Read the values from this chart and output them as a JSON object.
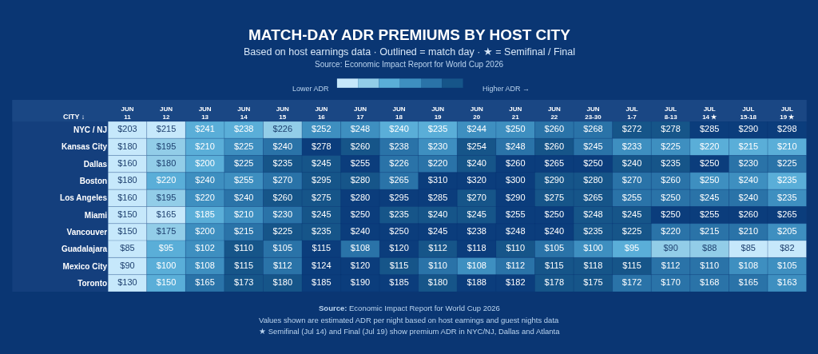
{
  "chart_data": {
    "type": "heatmap",
    "title": "MATCH-DAY ADR PREMIUMS BY HOST CITY",
    "subtitle": "Based on host earnings data · Outlined = match day · ★ = Semifinal / Final",
    "ylabel": "CITY ↓",
    "annotations": [
      "Source: Economic Impact Report for World Cup 2026",
      "Lower ADR",
      "Higher ADR →",
      "Source: Economic Impact Report for World Cup 2026",
      "Values shown are estimated ADR per night based on host earnings and guest nights data",
      "★ Semifinal (Jul 14) and Final (Jul 19) show premium ADR in NYC/NJ, Dallas and Atlanta"
    ],
    "categories": [
      "JUN 11",
      "JUN 12",
      "JUN 13",
      "JUN 14",
      "JUN 15",
      "JUN 16",
      "JUN 17",
      "JUN 18",
      "JUN 19",
      "JUN 20",
      "JUN 21",
      "JUN 22",
      "JUN 23-30",
      "JUL 1-7",
      "JUL 8-13",
      "JUL 14 ★",
      "JUL 15-18",
      "JUL 19 ★"
    ],
    "y_categories": [
      "NYC / NJ",
      "Kansas City",
      "Dallas",
      "Boston",
      "Los Angeles",
      "Miami",
      "Vancouver",
      "Guadalajara",
      "Mexico City",
      "Toronto"
    ],
    "cells": [
      [
        203,
        215,
        241,
        238,
        226,
        252,
        248,
        240,
        235,
        244,
        250,
        260,
        268,
        272,
        278,
        285,
        290,
        298
      ],
      [
        180,
        195,
        210,
        225,
        240,
        278,
        260,
        238,
        230,
        254,
        248,
        260,
        245,
        233,
        225,
        220,
        215,
        210
      ],
      [
        160,
        180,
        200,
        225,
        235,
        245,
        255,
        226,
        220,
        240,
        260,
        265,
        250,
        240,
        235,
        250,
        230,
        225
      ],
      [
        180,
        220,
        240,
        255,
        270,
        295,
        280,
        265,
        310,
        320,
        300,
        290,
        280,
        270,
        260,
        250,
        240,
        235
      ],
      [
        160,
        195,
        220,
        240,
        260,
        275,
        280,
        295,
        285,
        270,
        290,
        275,
        265,
        255,
        250,
        245,
        240,
        235
      ],
      [
        150,
        165,
        185,
        210,
        230,
        245,
        250,
        235,
        240,
        245,
        255,
        250,
        248,
        245,
        250,
        255,
        260,
        265
      ],
      [
        150,
        175,
        200,
        215,
        225,
        235,
        240,
        250,
        245,
        238,
        248,
        240,
        235,
        225,
        220,
        215,
        210,
        205
      ],
      [
        85,
        95,
        102,
        110,
        105,
        115,
        108,
        120,
        112,
        118,
        110,
        105,
        100,
        95,
        90,
        88,
        85,
        82
      ],
      [
        90,
        100,
        108,
        115,
        112,
        124,
        120,
        115,
        110,
        108,
        112,
        115,
        118,
        115,
        112,
        110,
        108,
        105
      ],
      [
        130,
        150,
        165,
        173,
        180,
        185,
        190,
        185,
        180,
        188,
        182,
        178,
        175,
        172,
        170,
        168,
        165,
        163
      ]
    ],
    "cell_labels": [
      [
        "$203",
        "$215",
        "$241",
        "$238",
        "$226",
        "$252",
        "$248",
        "$240",
        "$235",
        "$244",
        "$250",
        "$260",
        "$268",
        "$272",
        "$278",
        "$285",
        "$290",
        "$298"
      ],
      [
        "$180",
        "$195",
        "$210",
        "$225",
        "$240",
        "$278",
        "$260",
        "$238",
        "$230",
        "$254",
        "$248",
        "$260",
        "$245",
        "$233",
        "$225",
        "$220",
        "$215",
        "$210"
      ],
      [
        "$160",
        "$180",
        "$200",
        "$225",
        "$235",
        "$245",
        "$255",
        "$226",
        "$220",
        "$240",
        "$260",
        "$265",
        "$250",
        "$240",
        "$235",
        "$250",
        "$230",
        "$225"
      ],
      [
        "$180",
        "$220",
        "$240",
        "$255",
        "$270",
        "$295",
        "$280",
        "$265",
        "$310",
        "$320",
        "$300",
        "$290",
        "$280",
        "$270",
        "$260",
        "$250",
        "$240",
        "$235"
      ],
      [
        "$160",
        "$195",
        "$220",
        "$240",
        "$260",
        "$275",
        "$280",
        "$295",
        "$285",
        "$270",
        "$290",
        "$275",
        "$265",
        "$255",
        "$250",
        "$245",
        "$240",
        "$235"
      ],
      [
        "$150",
        "$165",
        "$185",
        "$210",
        "$230",
        "$245",
        "$250",
        "$235",
        "$240",
        "$245",
        "$255",
        "$250",
        "$248",
        "$245",
        "$250",
        "$255",
        "$260",
        "$265"
      ],
      [
        "$150",
        "$175",
        "$200",
        "$215",
        "$225",
        "$235",
        "$240",
        "$250",
        "$245",
        "$238",
        "$248",
        "$240",
        "$235",
        "$225",
        "$220",
        "$215",
        "$210",
        "$205"
      ],
      [
        "$85",
        "$95",
        "$102",
        "$110",
        "$105",
        "$115",
        "$108",
        "$120",
        "$112",
        "$118",
        "$110",
        "$105",
        "$100",
        "$95",
        "$90",
        "$88",
        "$85",
        "$82"
      ],
      [
        "$90",
        "$100",
        "$108",
        "$115",
        "$112",
        "$124",
        "$120",
        "$115",
        "$110",
        "$108",
        "$112",
        "$115",
        "$118",
        "$115",
        "$112",
        "$110",
        "$108",
        "$105"
      ],
      [
        "$130",
        "$150",
        "$165",
        "$173",
        "$180",
        "$185",
        "$190",
        "$185",
        "$180",
        "$188",
        "$182",
        "$178",
        "$175",
        "$172",
        "$170",
        "$168",
        "$165",
        "$163"
      ]
    ],
    "grid": false
  }
}
